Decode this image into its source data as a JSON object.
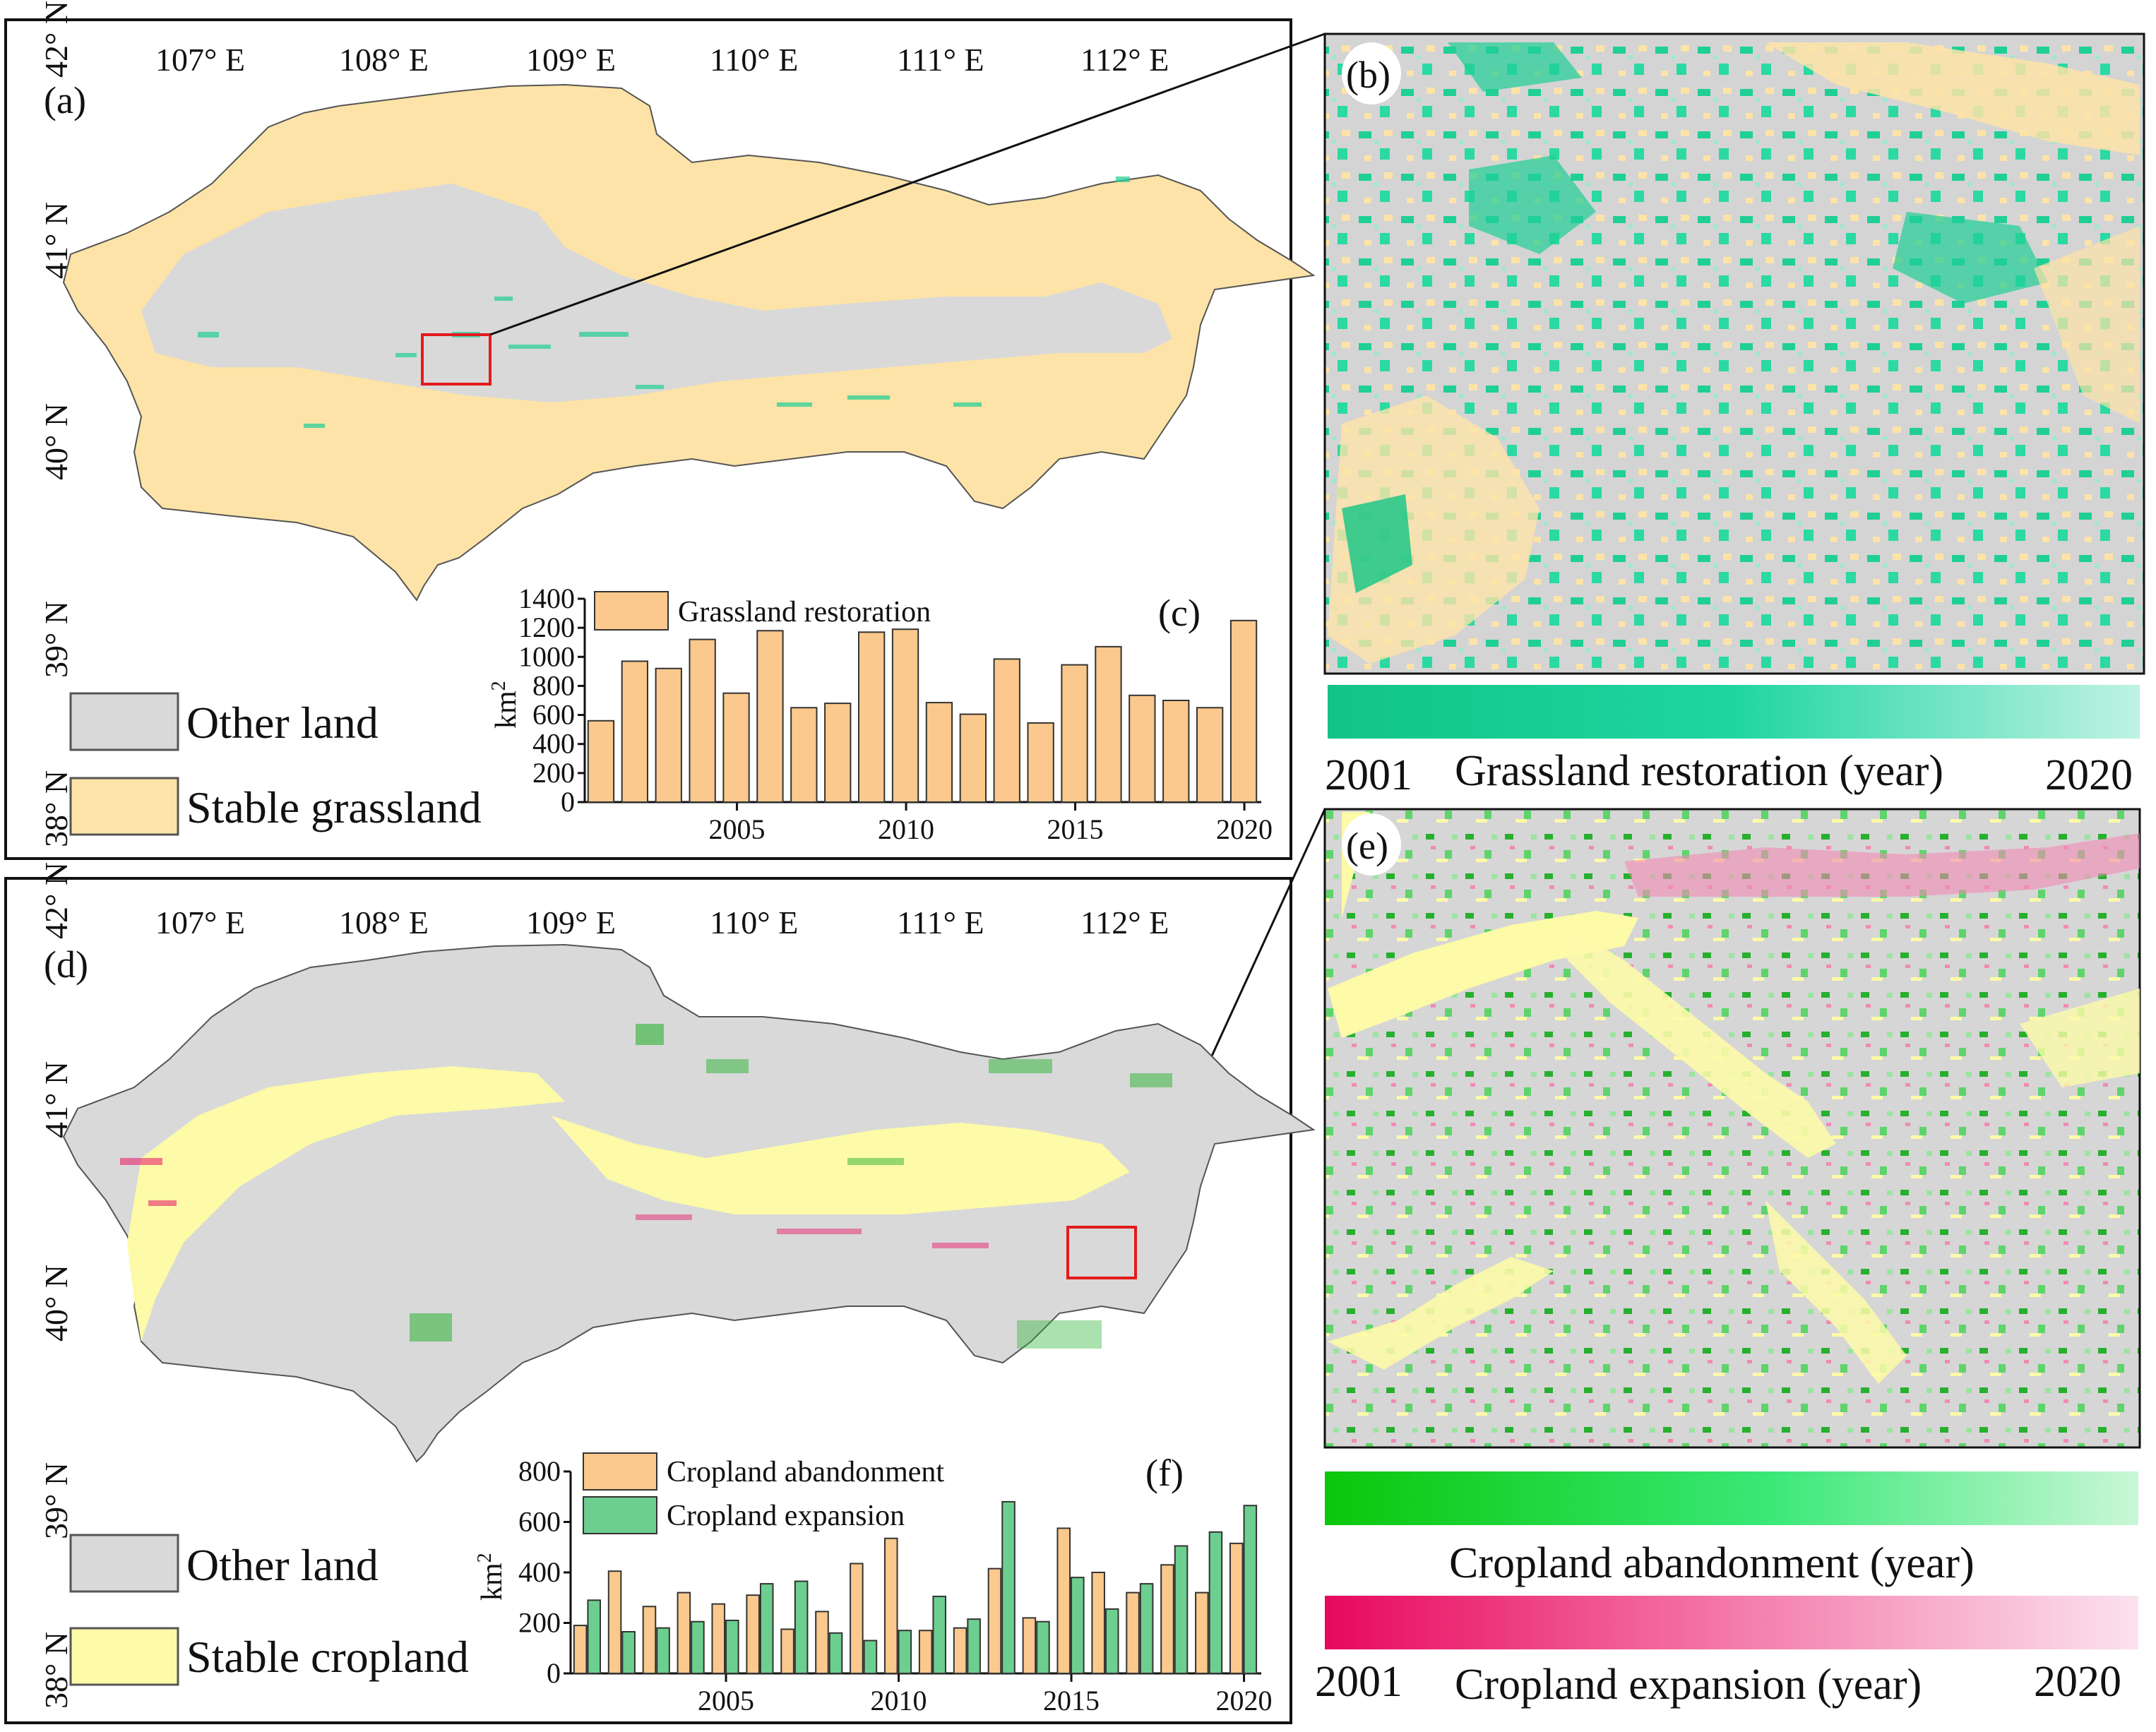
{
  "panels": {
    "a": "(a)",
    "b": "(b)",
    "c": "(c)",
    "d": "(d)",
    "e": "(e)",
    "f": "(f)"
  },
  "longitudes": [
    "107° E",
    "108° E",
    "109° E",
    "110° E",
    "111° E",
    "112° E"
  ],
  "latitudes": [
    "42° N",
    "41° N",
    "40° N",
    "39° N",
    "38° N"
  ],
  "legend_top": {
    "other": "Other land",
    "stable": "Stable grassland"
  },
  "legend_bottom": {
    "other": "Other land",
    "stable": "Stable cropland"
  },
  "colorbar_b": {
    "start": "2001",
    "label": "Grassland restoration (year)",
    "end": "2020"
  },
  "colorbar_e": {
    "green_label": "Cropland abandonment (year)",
    "start": "2001",
    "pink_label": "Cropland expansion (year)",
    "end": "2020"
  },
  "colors": {
    "other_land": "#d9d9d9",
    "stable_grassland": "#fde3a7",
    "stable_cropland": "#fdfaa8",
    "restoration_green": "#1dc98f",
    "abandon_green": "#1fb82a",
    "expansion_pink": "#e8246e",
    "bar_orange": "#fbc98d",
    "bar_green": "#6ccf8f",
    "frame_red": "#e31a1c"
  },
  "chart_data": [
    {
      "type": "bar",
      "title": "(c)",
      "ylabel": "km2",
      "ylim": [
        0,
        1400
      ],
      "yticks": [
        "0",
        "200",
        "400",
        "600",
        "800",
        "1000",
        "1200",
        "1400"
      ],
      "xticks": [
        "2005",
        "2010",
        "2015",
        "2020"
      ],
      "legend": "Grassland restoration",
      "categories": [
        2001,
        2002,
        2003,
        2004,
        2005,
        2006,
        2007,
        2008,
        2009,
        2010,
        2011,
        2012,
        2013,
        2014,
        2015,
        2016,
        2017,
        2018,
        2019,
        2020
      ],
      "series": [
        {
          "name": "Grassland restoration",
          "values": [
            560,
            970,
            920,
            1120,
            750,
            1180,
            650,
            680,
            1170,
            1190,
            685,
            605,
            985,
            545,
            945,
            1070,
            735,
            700,
            650,
            1250
          ]
        }
      ]
    },
    {
      "type": "bar",
      "title": "(f)",
      "ylabel": "km2",
      "ylim": [
        0,
        800
      ],
      "yticks": [
        "0",
        "200",
        "400",
        "600",
        "800"
      ],
      "xticks": [
        "2005",
        "2010",
        "2015",
        "2020"
      ],
      "legend": [
        "Cropland abandonment",
        "Cropland expansion"
      ],
      "categories": [
        2001,
        2002,
        2003,
        2004,
        2005,
        2006,
        2007,
        2008,
        2009,
        2010,
        2011,
        2012,
        2013,
        2014,
        2015,
        2016,
        2017,
        2018,
        2019,
        2020
      ],
      "series": [
        {
          "name": "Cropland abandonment",
          "values": [
            190,
            405,
            265,
            320,
            275,
            310,
            175,
            245,
            435,
            535,
            170,
            180,
            415,
            220,
            575,
            400,
            320,
            430,
            320,
            515
          ]
        },
        {
          "name": "Cropland expansion",
          "values": [
            290,
            165,
            180,
            205,
            210,
            355,
            365,
            160,
            130,
            170,
            305,
            215,
            680,
            205,
            380,
            255,
            355,
            505,
            560,
            665
          ]
        }
      ]
    }
  ]
}
